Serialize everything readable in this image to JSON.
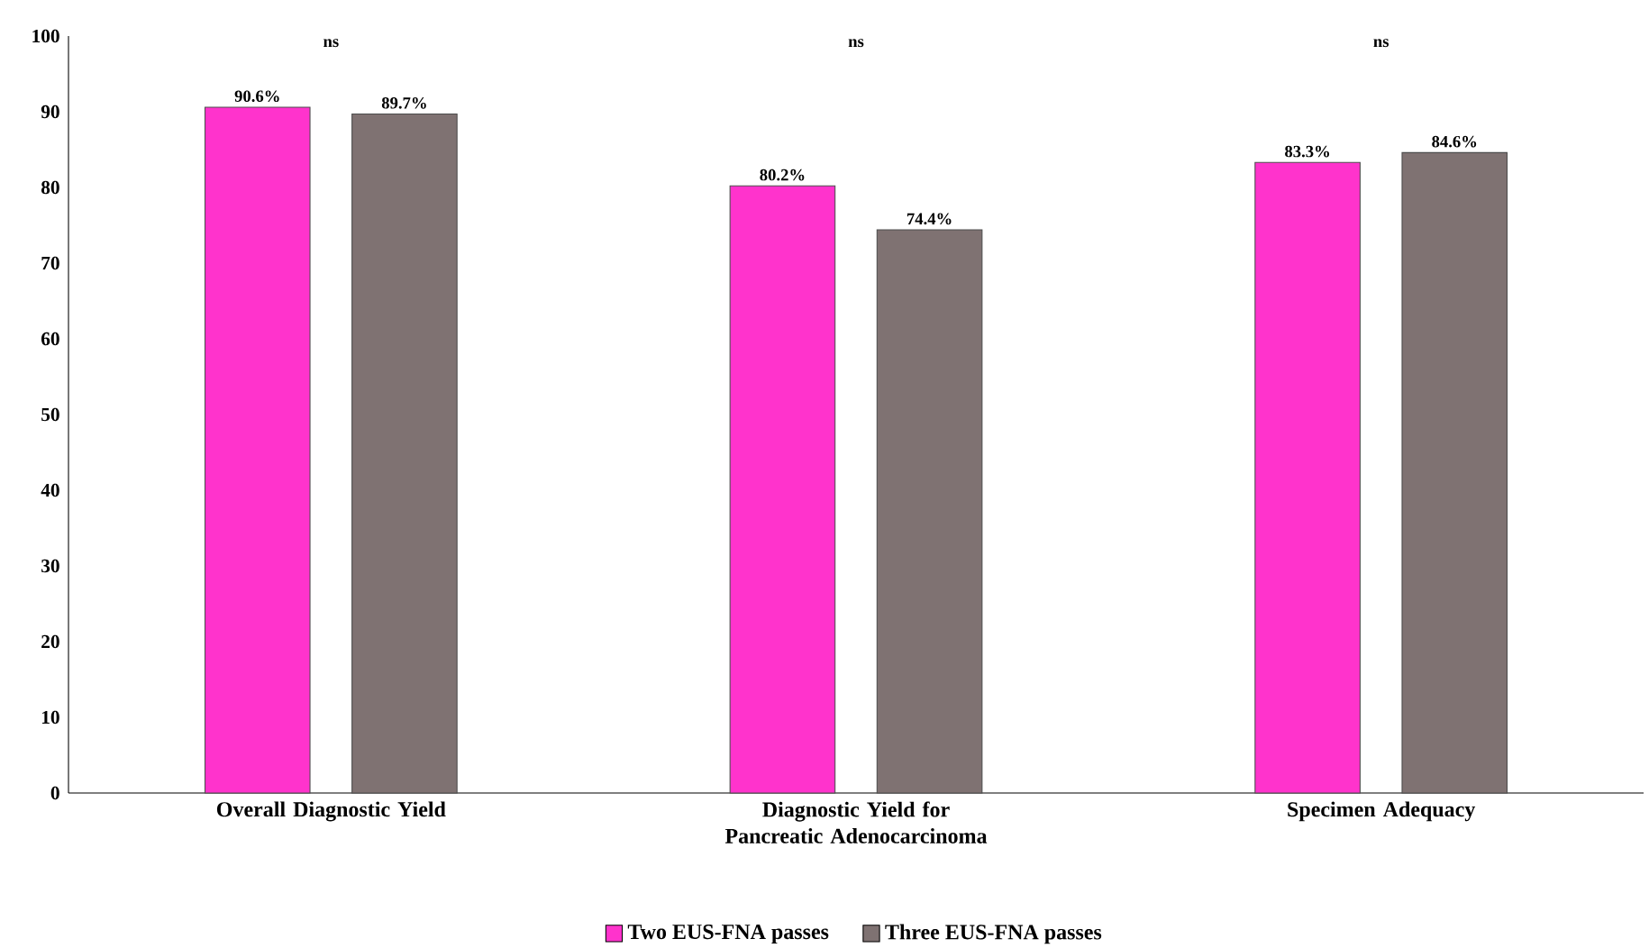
{
  "chart_data": {
    "type": "bar",
    "categories": [
      "Overall Diagnostic Yield",
      "Diagnostic Yield for Pancreatic Adenocarcinoma",
      "Specimen Adequacy"
    ],
    "series": [
      {
        "name": "Two EUS-FNA passes",
        "color": "#ff33cc",
        "values": [
          90.6,
          80.2,
          83.3
        ],
        "value_labels": [
          "90.6%",
          "80.2%",
          "83.3%"
        ]
      },
      {
        "name": "Three EUS-FNA passes",
        "color": "#7f7272",
        "values": [
          89.7,
          74.4,
          84.6
        ],
        "value_labels": [
          "89.7%",
          "74.4%",
          "84.6%"
        ]
      }
    ],
    "ylim": [
      0,
      100
    ],
    "yticks": [
      0,
      10,
      20,
      30,
      40,
      50,
      60,
      70,
      80,
      90,
      100
    ],
    "annotations": [
      "ns",
      "ns",
      "ns"
    ],
    "legend": "bottom"
  }
}
